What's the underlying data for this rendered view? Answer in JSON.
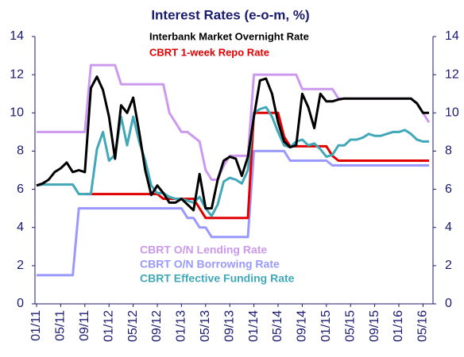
{
  "chart_data": {
    "type": "line",
    "title": "Interest Rates (e-o-m, %)",
    "categories": [
      "01/11",
      null,
      null,
      null,
      "05/11",
      null,
      null,
      null,
      "09/11",
      null,
      null,
      null,
      "01/12",
      null,
      null,
      null,
      "05/12",
      null,
      null,
      null,
      "09/12",
      null,
      null,
      null,
      "01/13",
      null,
      null,
      null,
      "05/13",
      null,
      null,
      null,
      "09/13",
      null,
      null,
      null,
      "01/14",
      null,
      null,
      null,
      "05/14",
      null,
      null,
      null,
      "09/14",
      null,
      null,
      null,
      "01/15",
      null,
      null,
      null,
      "05/15",
      null,
      null,
      null,
      "09/15",
      null,
      null,
      null,
      "01/16",
      null,
      null,
      null,
      "05/16",
      null
    ],
    "series": [
      {
        "name": "Interbank Market Overnight Rate",
        "color": "#000000",
        "values": [
          6.2,
          6.3,
          6.5,
          6.9,
          7.1,
          7.4,
          6.9,
          7.0,
          6.9,
          11.3,
          11.9,
          11.2,
          9.8,
          7.6,
          10.4,
          10.0,
          10.8,
          9.0,
          7.0,
          5.7,
          6.2,
          5.8,
          5.3,
          5.3,
          5.5,
          5.2,
          4.9,
          6.8,
          5.0,
          5.0,
          6.5,
          7.5,
          7.7,
          7.6,
          6.7,
          7.7,
          9.8,
          11.7,
          11.8,
          11.0,
          9.5,
          8.5,
          8.2,
          8.3,
          11.0,
          10.3,
          9.2,
          11.0,
          10.6,
          10.6,
          10.7,
          10.75,
          10.75,
          10.75,
          10.75,
          10.75,
          10.75,
          10.75,
          10.75,
          10.75,
          10.75,
          10.75,
          10.75,
          10.5,
          10.0,
          10.0
        ]
      },
      {
        "name": "CBRT 1-week Repo Rate",
        "color": "#e00000",
        "values": [
          null,
          null,
          null,
          null,
          null,
          null,
          null,
          null,
          5.75,
          5.75,
          5.75,
          5.75,
          5.75,
          5.75,
          5.75,
          5.75,
          5.75,
          5.75,
          5.75,
          5.75,
          5.75,
          5.5,
          5.5,
          5.5,
          5.5,
          5.5,
          5.5,
          5.0,
          4.5,
          4.5,
          4.5,
          4.5,
          4.5,
          4.5,
          4.5,
          4.5,
          10,
          10,
          10,
          10,
          10,
          8.75,
          8.25,
          8.25,
          8.25,
          8.25,
          8.25,
          8.25,
          8.25,
          7.75,
          7.5,
          7.5,
          7.5,
          7.5,
          7.5,
          7.5,
          7.5,
          7.5,
          7.5,
          7.5,
          7.5,
          7.5,
          7.5,
          7.5,
          7.5,
          7.5
        ]
      },
      {
        "name": "CBRT O/N Lending Rate",
        "color": "#cc99ee",
        "values": [
          9,
          9,
          9,
          9,
          9,
          9,
          9,
          9,
          9,
          12.5,
          12.5,
          12.5,
          12.5,
          12.5,
          11.5,
          11.5,
          11.5,
          11.5,
          11.5,
          11.5,
          11.5,
          11.5,
          10,
          9.5,
          9,
          9,
          8.75,
          8.5,
          7,
          6.5,
          6.5,
          7.25,
          7.75,
          7.75,
          7.75,
          7.75,
          12,
          12,
          12,
          12,
          12,
          12,
          12,
          12,
          11.25,
          11.25,
          11.25,
          11.25,
          11.25,
          11.25,
          10.75,
          10.75,
          10.75,
          10.75,
          10.75,
          10.75,
          10.75,
          10.75,
          10.75,
          10.75,
          10.75,
          10.75,
          10.75,
          10.5,
          10,
          9.5
        ]
      },
      {
        "name": "CBRT O/N Borrowing Rate",
        "color": "#9999ff",
        "values": [
          1.5,
          1.5,
          1.5,
          1.5,
          1.5,
          1.5,
          1.5,
          5,
          5,
          5,
          5,
          5,
          5,
          5,
          5,
          5,
          5,
          5,
          5,
          5,
          5,
          5,
          5,
          5,
          5,
          4.5,
          4.5,
          4,
          4,
          3.5,
          3.5,
          3.5,
          3.5,
          3.5,
          3.5,
          3.5,
          8,
          8,
          8,
          8,
          8,
          8,
          7.5,
          7.5,
          7.5,
          7.5,
          7.5,
          7.5,
          7.5,
          7.25,
          7.25,
          7.25,
          7.25,
          7.25,
          7.25,
          7.25,
          7.25,
          7.25,
          7.25,
          7.25,
          7.25,
          7.25,
          7.25,
          7.25,
          7.25,
          7.25
        ]
      },
      {
        "name": "CBRT Effective Funding Rate",
        "color": "#40a8b8",
        "values": [
          6.2,
          6.25,
          6.25,
          6.25,
          6.25,
          6.25,
          6.25,
          5.75,
          5.75,
          5.75,
          8.1,
          9.0,
          7.5,
          7.8,
          9.8,
          8.3,
          9.8,
          8.5,
          7.5,
          6.2,
          5.8,
          5.8,
          5.6,
          5.5,
          5.5,
          5.4,
          5.3,
          5.6,
          5.0,
          4.6,
          5.2,
          6.4,
          6.6,
          6.5,
          6.3,
          7.0,
          10.0,
          10.2,
          10.3,
          9.8,
          9.0,
          8.3,
          8.2,
          8.5,
          8.6,
          8.3,
          8.4,
          8.1,
          7.7,
          7.8,
          8.3,
          8.3,
          8.6,
          8.6,
          8.7,
          8.9,
          8.8,
          8.8,
          8.9,
          9.0,
          9.0,
          9.1,
          8.9,
          8.6,
          8.5,
          8.5
        ]
      }
    ],
    "ylim": [
      0,
      14
    ],
    "yticks": [
      0,
      2,
      4,
      6,
      8,
      10,
      12,
      14
    ],
    "y2lim": [
      0,
      14
    ],
    "y2ticks": [
      0,
      2,
      4,
      6,
      8,
      10,
      12,
      14
    ]
  }
}
